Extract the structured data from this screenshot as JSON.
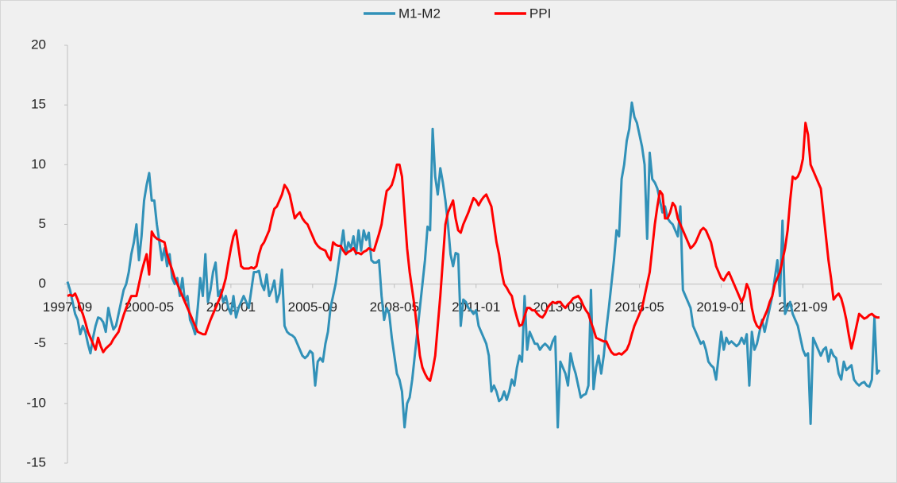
{
  "chart_data": {
    "type": "line",
    "legend": "top",
    "categories": [
      "1997-09",
      null,
      null,
      null,
      null,
      null,
      null,
      null,
      null,
      null,
      null,
      null,
      null,
      null,
      null,
      null,
      null,
      null,
      null,
      null,
      null,
      null,
      null,
      null,
      null,
      null,
      null,
      null,
      null,
      null,
      null,
      null,
      "2000-05",
      null,
      null,
      null,
      null,
      null,
      null,
      null,
      null,
      null,
      null,
      null,
      null,
      null,
      null,
      null,
      null,
      null,
      null,
      null,
      null,
      null,
      null,
      null,
      null,
      null,
      null,
      null,
      null,
      null,
      null,
      null,
      "2003-01",
      null,
      null,
      null,
      null,
      null,
      null,
      null,
      null,
      null,
      null,
      null,
      null,
      null,
      null,
      null,
      null,
      null,
      null,
      null,
      null,
      null,
      null,
      null,
      null,
      null,
      null,
      null,
      null,
      null,
      null,
      null,
      "2005-09",
      null,
      null,
      null,
      null,
      null,
      null,
      null,
      null,
      null,
      null,
      null,
      null,
      null,
      null,
      null,
      null,
      null,
      null,
      null,
      null,
      null,
      null,
      null,
      null,
      null,
      null,
      null,
      null,
      null,
      null,
      null,
      "2008-05",
      null,
      null,
      null,
      null,
      null,
      null,
      null,
      null,
      null,
      null,
      null,
      null,
      null,
      null,
      null,
      null,
      null,
      null,
      null,
      null,
      null,
      null,
      null,
      null,
      null,
      null,
      null,
      null,
      null,
      null,
      null,
      "2011-01",
      null,
      null,
      null,
      null,
      null,
      null,
      null,
      null,
      null,
      null,
      null,
      null,
      null,
      null,
      null,
      null,
      null,
      null,
      null,
      null,
      null,
      null,
      null,
      null,
      null,
      null,
      null,
      null,
      null,
      null,
      null,
      "2013-09",
      null,
      null,
      null,
      null,
      null,
      null,
      null,
      null,
      null,
      null,
      null,
      null,
      null,
      null,
      null,
      null,
      null,
      null,
      null,
      null,
      null,
      null,
      null,
      null,
      null,
      null,
      null,
      null,
      null,
      null,
      null,
      "2016-05",
      null,
      null,
      null,
      null,
      null,
      null,
      null,
      null,
      null,
      null,
      null,
      null,
      null,
      null,
      null,
      null,
      null,
      null,
      null,
      null,
      null,
      null,
      null,
      null,
      null,
      null,
      null,
      null,
      null,
      null,
      null,
      "2019-01",
      null,
      null,
      null,
      null,
      null,
      null,
      null,
      null,
      null,
      null,
      null,
      null,
      null,
      null,
      null,
      null,
      null,
      null,
      null,
      null,
      null,
      null,
      null,
      null,
      null,
      null,
      null,
      null,
      null,
      null,
      null,
      "2021-09",
      null,
      null,
      null,
      null,
      null,
      null,
      null,
      null,
      null,
      null,
      null,
      null,
      null,
      null,
      null,
      null,
      null,
      null,
      null,
      null,
      null,
      null,
      null,
      null,
      null,
      null,
      null,
      null,
      null,
      null
    ],
    "series": [
      {
        "name": "M1-M2",
        "color": "#3191b8",
        "values": [
          0.2,
          -0.5,
          -1.5,
          -2.5,
          -3,
          -4.2,
          -3.5,
          -4,
          -5,
          -5.8,
          -4.5,
          -3.5,
          -2.8,
          -2.9,
          -3.2,
          -4,
          -2,
          -3,
          -3.8,
          -3.5,
          -2.5,
          -1.5,
          -0.5,
          0,
          1,
          2.5,
          3.5,
          5,
          2,
          4,
          7,
          8.3,
          9.3,
          7,
          7,
          5,
          3.5,
          2,
          3,
          1.5,
          2.5,
          0.5,
          0,
          0.5,
          -1,
          0.5,
          -1.5,
          -1,
          -3,
          -3.5,
          -4.2,
          -2,
          0.5,
          -1,
          2.5,
          -1.5,
          -0.5,
          1,
          1.8,
          -1,
          -0.5,
          -1.5,
          -1,
          -2,
          -2.5,
          -1,
          -2.8,
          -2,
          -1.5,
          -1,
          -1.5,
          -2,
          -0.5,
          1,
          1,
          1.1,
          0,
          -0.5,
          0.8,
          -1,
          -0.5,
          0.3,
          -1.5,
          -0.8,
          1.2,
          -3.5,
          -4,
          -4.2,
          -4.3,
          -4.5,
          -5,
          -5.5,
          -6,
          -6.2,
          -6,
          -5.6,
          -5.8,
          -8.5,
          -6.5,
          -6.2,
          -6.5,
          -5,
          -4,
          -2,
          -1,
          0,
          1.5,
          3,
          4.5,
          2.5,
          3.5,
          3,
          4,
          2.5,
          4.5,
          2.8,
          4.5,
          3.7,
          4.3,
          2,
          1.8,
          1.8,
          2,
          -1,
          -3,
          -2,
          -2.5,
          -4.5,
          -6,
          -7.5,
          -8,
          -9,
          -12,
          -10,
          -9.5,
          -8,
          -6,
          -4,
          -2,
          0,
          2,
          4.8,
          4.5,
          13,
          9,
          7.5,
          9.7,
          8.5,
          7,
          5,
          2.5,
          1.5,
          2.6,
          2.5,
          -3.5,
          -1.3,
          -1.5,
          -2,
          -2.2,
          -2.5,
          -2.2,
          -3.5,
          -4,
          -4.5,
          -5,
          -6,
          -9,
          -8.5,
          -9,
          -9.8,
          -9.6,
          -9,
          -9.7,
          -9,
          -8,
          -8.5,
          -7,
          -6,
          -6.5,
          -1,
          -5.5,
          -4,
          -4.5,
          -5,
          -5,
          -5.5,
          -5.2,
          -5,
          -5.2,
          -5.5,
          -4.8,
          -4.4,
          -12,
          -6.5,
          -7,
          -7.5,
          -8.5,
          -5.8,
          -6.8,
          -7.5,
          -8.5,
          -9.5,
          -9.3,
          -9.2,
          -8.5,
          -0.5,
          -8.8,
          -7,
          -6,
          -7.5,
          -6,
          -3.8,
          -2,
          0,
          2,
          4.5,
          4,
          8.8,
          10,
          12,
          13,
          15.2,
          14,
          13.5,
          12.5,
          11.5,
          10,
          3.8,
          11,
          8.8,
          8.5,
          8,
          7,
          6,
          6.5,
          5.5,
          5.2,
          5,
          4.5,
          4,
          6.5,
          -0.5,
          -1,
          -1.5,
          -2,
          -3.5,
          -4,
          -4.5,
          -5,
          -4.8,
          -5.5,
          -6.5,
          -6.8,
          -7,
          -8,
          -6,
          -4,
          -5.5,
          -4.5,
          -5,
          -4.8,
          -5,
          -5.2,
          -5,
          -4.5,
          -5,
          -4.2,
          -8.5,
          -4,
          -5.5,
          -5,
          -4,
          -3,
          -4,
          -3,
          -2,
          -1,
          0.5,
          2,
          -1,
          5.3,
          -2.5,
          -2,
          -1.5,
          -2.5,
          -3,
          -3.5,
          -4.5,
          -5.5,
          -6,
          -5.8,
          -11.7,
          -4.5,
          -5,
          -5.5,
          -6,
          -5.5,
          -5.3,
          -6.5,
          -5.5,
          -6,
          -6.2,
          -7.5,
          -8,
          -6.5,
          -7.2,
          -7,
          -6.8,
          -8,
          -8.3,
          -8.5,
          -8.3,
          -8.2,
          -8.5,
          -8.6,
          -8,
          -2.8,
          -7.5,
          -7.2
        ]
      },
      {
        "name": "PPI",
        "color": "#ff0000",
        "values": [
          -1,
          -0.9,
          -1,
          -0.8,
          -1.3,
          -2,
          -2.5,
          -3.2,
          -4,
          -4.5,
          -5,
          -5.5,
          -4.5,
          -5.2,
          -5.7,
          -5.4,
          -5.2,
          -5,
          -4.6,
          -4.3,
          -4,
          -3.3,
          -2.6,
          -2,
          -1.5,
          -1,
          -1,
          -1,
          0,
          1,
          1.8,
          2.5,
          0.8,
          4.4,
          4,
          3.8,
          3.7,
          3.6,
          3.5,
          2.5,
          1.8,
          1.2,
          0.5,
          0,
          -0.5,
          -1,
          -1.5,
          -2,
          -2.5,
          -3,
          -3.5,
          -4,
          -4.1,
          -4.2,
          -4.2,
          -3.6,
          -3,
          -2.5,
          -2,
          -1.5,
          -1,
          -0.3,
          0.5,
          1.8,
          3,
          4,
          4.5,
          3,
          1.5,
          1.3,
          1.3,
          1.3,
          1.4,
          1.3,
          1.5,
          2.5,
          3.2,
          3.5,
          4,
          4.5,
          5.5,
          6.3,
          6.5,
          7,
          7.5,
          8.3,
          8,
          7.5,
          6.5,
          5.5,
          5.8,
          6,
          5.5,
          5.2,
          5,
          4.5,
          4,
          3.5,
          3.2,
          3,
          2.9,
          2.8,
          2.3,
          2,
          3.5,
          3.3,
          3.2,
          3.2,
          2.8,
          2.5,
          2.7,
          2.8,
          3,
          2.6,
          2.6,
          2.5,
          2.7,
          2.8,
          3,
          2.9,
          2.8,
          3.5,
          4.2,
          5,
          6.5,
          7.8,
          8,
          8.3,
          9,
          10,
          10,
          9,
          6,
          3,
          1,
          -0.5,
          -2,
          -4,
          -6,
          -7,
          -7.5,
          -7.9,
          -8.1,
          -7.2,
          -6,
          -3.5,
          -1,
          2,
          5,
          6,
          6.5,
          7,
          5.5,
          4.5,
          4.3,
          5,
          5.5,
          6,
          6.6,
          7.2,
          7,
          6.6,
          7,
          7.3,
          7.5,
          7,
          6.5,
          5,
          3.5,
          2.5,
          1,
          0,
          -0.3,
          -0.7,
          -1,
          -2,
          -2.8,
          -3.5,
          -3.4,
          -2.7,
          -2,
          -2,
          -2.2,
          -2.2,
          -2.5,
          -2.7,
          -2.8,
          -2.5,
          -2,
          -1.7,
          -1.5,
          -1.6,
          -1.5,
          -1.5,
          -1.8,
          -2,
          -1.7,
          -1.5,
          -1.2,
          -1.1,
          -1,
          -1.3,
          -1.8,
          -2.2,
          -2.5,
          -3.2,
          -3.8,
          -4.5,
          -4.6,
          -4.7,
          -4.8,
          -4.8,
          -5.3,
          -5.7,
          -5.9,
          -5.9,
          -5.8,
          -5.9,
          -5.7,
          -5.5,
          -5,
          -4.2,
          -3.5,
          -3,
          -2.5,
          -2,
          -1,
          0,
          1,
          3,
          5,
          6.5,
          7.8,
          7.5,
          5.5,
          5.5,
          6,
          6.8,
          6.5,
          5.5,
          5,
          4.5,
          4,
          3.5,
          3,
          3.2,
          3.5,
          4,
          4.5,
          4.7,
          4.5,
          4,
          3.5,
          2.5,
          1.5,
          1,
          0.5,
          0.3,
          0.7,
          1,
          0.5,
          0,
          -0.5,
          -1,
          -1.5,
          -1,
          0,
          -0.5,
          -2,
          -3,
          -3.5,
          -3.7,
          -3.2,
          -2.7,
          -2.2,
          -1.5,
          -1,
          0,
          0.5,
          1,
          2,
          3,
          4.5,
          7,
          9,
          8.8,
          9,
          9.5,
          10.5,
          13.5,
          12.5,
          10,
          9.5,
          9,
          8.5,
          8,
          6,
          4,
          2,
          0.5,
          -1.3,
          -1,
          -0.8,
          -1.2,
          -2,
          -3,
          -4.3,
          -5.4,
          -4.5,
          -3.5,
          -2.5,
          -2.7,
          -2.9,
          -2.8,
          -2.6,
          -2.5,
          -2.7,
          -2.8,
          -2.8
        ]
      }
    ],
    "ylim": [
      -15,
      20
    ],
    "yticks": [
      -15,
      -10,
      -5,
      0,
      5,
      10,
      15,
      20
    ]
  }
}
